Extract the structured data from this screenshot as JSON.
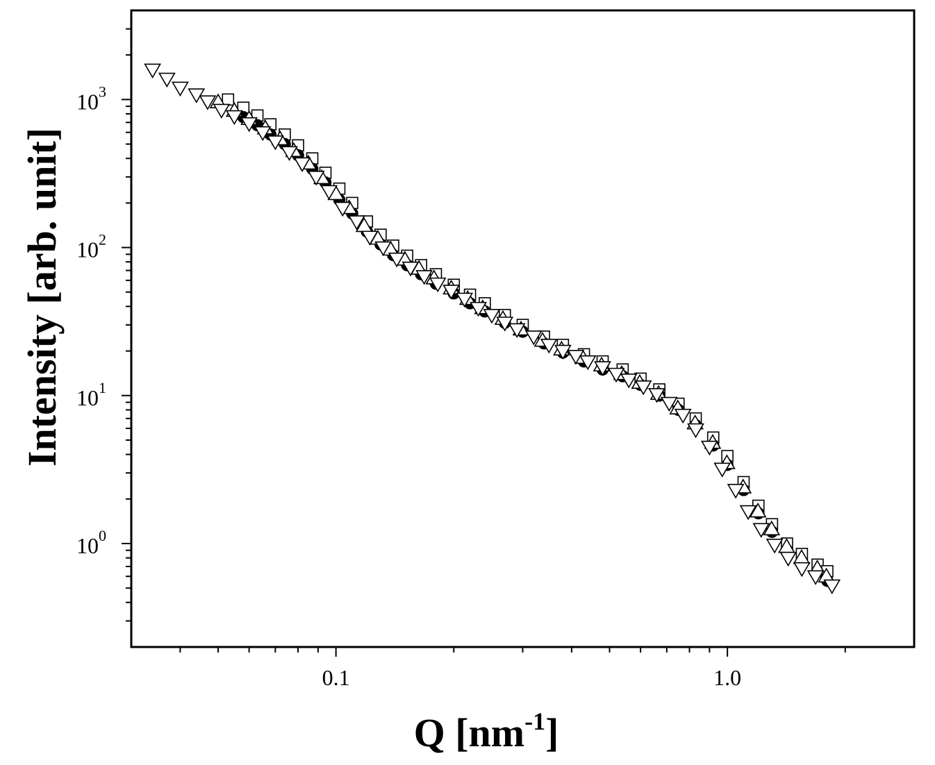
{
  "chart_data": {
    "type": "scatter",
    "xlabel_parts": [
      "Q [nm",
      "-1",
      "]"
    ],
    "ylabel": "Intensity [arb. unit]",
    "xscale": "log",
    "yscale": "log",
    "minor_ticks": true,
    "xlim": [
      0.03,
      3
    ],
    "ylim": [
      0.2,
      4000
    ],
    "xticks": [
      0.1,
      {
        "value": 1,
        "label": "1.0"
      }
    ],
    "yticks": [
      {
        "value": 1,
        "label": "10",
        "exponent": "0"
      },
      {
        "value": 10,
        "label": "10",
        "exponent": "1"
      },
      {
        "value": 100,
        "label": "10",
        "exponent": "2"
      },
      {
        "value": 1000,
        "label": "10",
        "exponent": "3"
      }
    ],
    "series": [
      {
        "marker": "square",
        "color": "#000000",
        "x": [
          0.053,
          0.058,
          0.063,
          0.068,
          0.074,
          0.08,
          0.087,
          0.094,
          0.102,
          0.11,
          0.12,
          0.13,
          0.14,
          0.152,
          0.165,
          0.18,
          0.2,
          0.22,
          0.24,
          0.27,
          0.3,
          0.34,
          0.38,
          0.43,
          0.48,
          0.54,
          0.6,
          0.67,
          0.75,
          0.83,
          0.92,
          1.0,
          1.1,
          1.2,
          1.3,
          1.42,
          1.55,
          1.7,
          1.8
        ],
        "values": [
          1000,
          880,
          780,
          680,
          580,
          490,
          400,
          320,
          250,
          200,
          150,
          122,
          103,
          88,
          76,
          66,
          56,
          48,
          42,
          35,
          30,
          25,
          22,
          19,
          17,
          15,
          13,
          11,
          8.8,
          7,
          5.2,
          3.9,
          2.6,
          1.8,
          1.35,
          1.0,
          0.85,
          0.72,
          0.65
        ]
      },
      {
        "marker": "circle",
        "color": "#000000",
        "x": [
          0.058,
          0.063,
          0.068,
          0.074,
          0.08,
          0.087,
          0.094,
          0.102,
          0.11,
          0.12,
          0.13,
          0.14,
          0.152,
          0.165,
          0.18,
          0.2,
          0.22,
          0.24,
          0.27,
          0.3,
          0.34,
          0.38,
          0.43,
          0.48,
          0.54,
          0.6,
          0.67,
          0.75,
          0.83,
          0.92,
          1.0,
          1.1,
          1.2,
          1.3,
          1.42,
          1.55,
          1.7,
          1.8
        ],
        "values": [
          760,
          670,
          580,
          500,
          420,
          340,
          275,
          210,
          170,
          128,
          105,
          89,
          76,
          66,
          57,
          49,
          42,
          37,
          31,
          27,
          22.5,
          19.5,
          17,
          15,
          13.5,
          11.8,
          10,
          8,
          6.3,
          4.6,
          3.4,
          2.3,
          1.6,
          1.2,
          0.9,
          0.75,
          0.64,
          0.56
        ]
      },
      {
        "marker": "triangle-up",
        "color": "#000000",
        "x": [
          0.05,
          0.055,
          0.06,
          0.066,
          0.072,
          0.078,
          0.085,
          0.092,
          0.1,
          0.108,
          0.118,
          0.128,
          0.138,
          0.15,
          0.163,
          0.178,
          0.197,
          0.217,
          0.237,
          0.267,
          0.297,
          0.337,
          0.377,
          0.427,
          0.477,
          0.537,
          0.597,
          0.667,
          0.747,
          0.827,
          0.917,
          0.997,
          1.097,
          1.197,
          1.297,
          1.417,
          1.547,
          1.697,
          1.79
        ],
        "values": [
          960,
          840,
          740,
          640,
          540,
          450,
          370,
          295,
          230,
          185,
          140,
          115,
          97,
          83,
          72,
          62,
          53,
          45,
          39,
          33,
          28,
          23.5,
          20.5,
          18,
          16,
          14,
          12.2,
          10.3,
          8.2,
          6.5,
          4.8,
          3.5,
          2.4,
          1.65,
          1.25,
          0.95,
          0.8,
          0.68,
          0.6
        ]
      },
      {
        "marker": "triangle-down",
        "color": "#000000",
        "x": [
          0.034,
          0.037,
          0.04,
          0.044,
          0.047,
          0.051,
          0.055,
          0.06,
          0.065,
          0.07,
          0.076,
          0.082,
          0.089,
          0.096,
          0.104,
          0.113,
          0.122,
          0.132,
          0.143,
          0.155,
          0.168,
          0.182,
          0.197,
          0.213,
          0.231,
          0.25,
          0.27,
          0.29,
          0.32,
          0.35,
          0.38,
          0.41,
          0.44,
          0.48,
          0.52,
          0.56,
          0.61,
          0.66,
          0.71,
          0.77,
          0.83,
          0.9,
          0.97,
          1.05,
          1.13,
          1.22,
          1.32,
          1.43,
          1.55,
          1.68,
          1.85
        ],
        "values": [
          1590,
          1380,
          1200,
          1080,
          970,
          850,
          770,
          690,
          600,
          520,
          440,
          370,
          300,
          240,
          185,
          150,
          118,
          100,
          84,
          73,
          64,
          57,
          51,
          45,
          39,
          35,
          31,
          28,
          25,
          22,
          20,
          18.5,
          17,
          15.5,
          14,
          12.8,
          11.5,
          10.2,
          8.9,
          7.4,
          5.9,
          4.5,
          3.2,
          2.3,
          1.65,
          1.25,
          0.98,
          0.8,
          0.68,
          0.6,
          0.52
        ]
      }
    ]
  }
}
